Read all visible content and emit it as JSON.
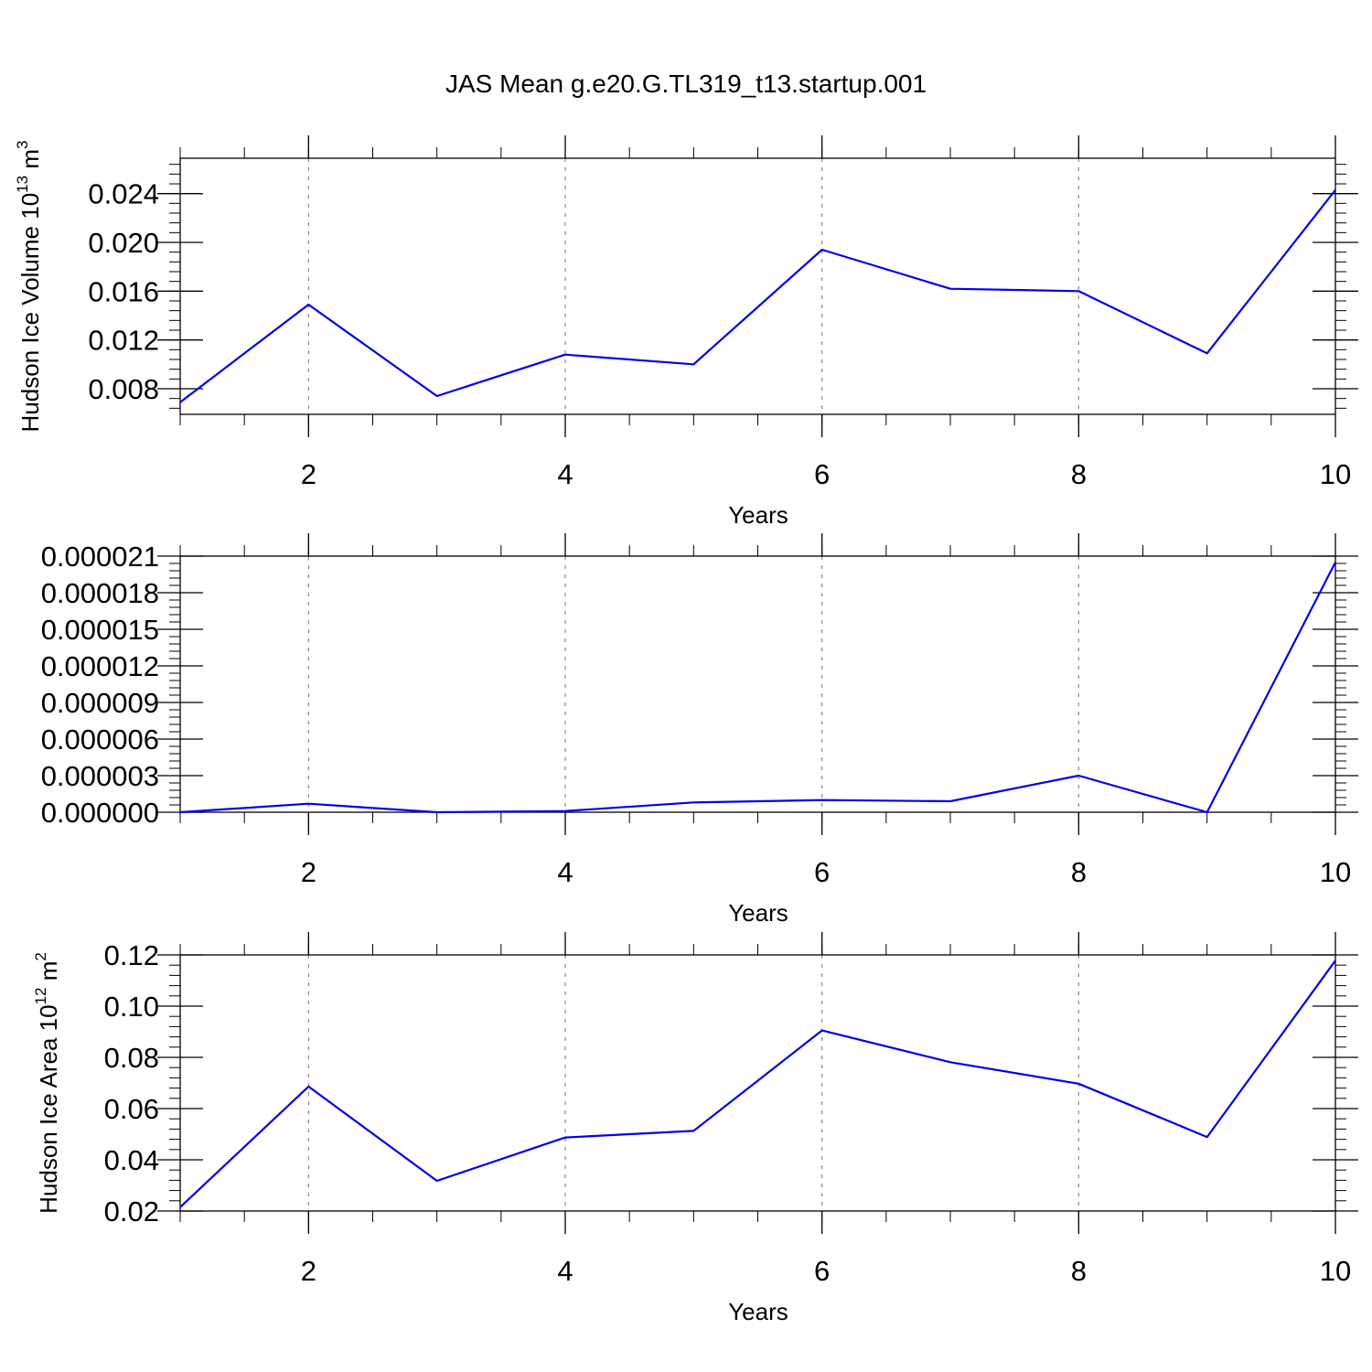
{
  "title": "JAS Mean g.e20.G.TL319_t13.startup.001",
  "chart_data": [
    {
      "type": "line",
      "ylabel": "Hudson Ice Volume 10",
      "ylabel_exp": "13",
      "ylabel_unit": " m",
      "ylabel_unit_exp": "3",
      "xlabel": "Years",
      "xlim": [
        1,
        10
      ],
      "ylim": [
        0.0059,
        0.0269
      ],
      "xticks": [
        2,
        4,
        6,
        8,
        10
      ],
      "xtick_labels": [
        "2",
        "4",
        "6",
        "8",
        "10"
      ],
      "yticks": [
        0.008,
        0.012,
        0.016,
        0.02,
        0.024
      ],
      "ytick_labels": [
        "0.008",
        "0.012",
        "0.016",
        "0.020",
        "0.024"
      ],
      "grid_x": "dashed",
      "series": [
        {
          "color": "#0000ee",
          "x": [
            1,
            2,
            3,
            4,
            5,
            6,
            7,
            8,
            9,
            10
          ],
          "y": [
            0.0069,
            0.0149,
            0.0074,
            0.0108,
            0.01,
            0.0194,
            0.0162,
            0.016,
            0.0109,
            0.0243
          ]
        }
      ]
    },
    {
      "type": "line",
      "ylabel": "",
      "xlabel": "Years",
      "xlim": [
        1,
        10
      ],
      "ylim": [
        0,
        2.1e-05
      ],
      "xticks": [
        2,
        4,
        6,
        8,
        10
      ],
      "xtick_labels": [
        "2",
        "4",
        "6",
        "8",
        "10"
      ],
      "yticks": [
        0,
        3e-06,
        6e-06,
        9e-06,
        1.2e-05,
        1.5e-05,
        1.8e-05,
        2.1e-05
      ],
      "ytick_labels": [
        "0.000000",
        "0.000003",
        "0.000006",
        "0.000009",
        "0.000012",
        "0.000015",
        "0.000018",
        "0.000021"
      ],
      "grid_x": "dashed",
      "series": [
        {
          "color": "#0000ee",
          "x": [
            1,
            2,
            3,
            4,
            5,
            6,
            7,
            8,
            9,
            10
          ],
          "y": [
            0.0,
            7e-07,
            0.0,
            1e-07,
            8e-07,
            1e-06,
            9e-07,
            3e-06,
            0.0,
            2.05e-05
          ]
        }
      ]
    },
    {
      "type": "line",
      "ylabel": "Hudson Ice Area 10",
      "ylabel_exp": "12",
      "ylabel_unit": " m",
      "ylabel_unit_exp": "2",
      "xlabel": "Years",
      "xlim": [
        1,
        10
      ],
      "ylim": [
        0.02,
        0.12
      ],
      "xticks": [
        2,
        4,
        6,
        8,
        10
      ],
      "xtick_labels": [
        "2",
        "4",
        "6",
        "8",
        "10"
      ],
      "yticks": [
        0.02,
        0.04,
        0.06,
        0.08,
        0.1,
        0.12
      ],
      "ytick_labels": [
        "0.02",
        "0.04",
        "0.06",
        "0.08",
        "0.10",
        "0.12"
      ],
      "grid_x": "dashed",
      "series": [
        {
          "color": "#0000ee",
          "x": [
            1,
            2,
            3,
            4,
            5,
            6,
            7,
            8,
            9,
            10
          ],
          "y": [
            0.0215,
            0.0686,
            0.0318,
            0.0487,
            0.0513,
            0.0905,
            0.0781,
            0.0697,
            0.0489,
            0.1178
          ]
        }
      ]
    }
  ]
}
